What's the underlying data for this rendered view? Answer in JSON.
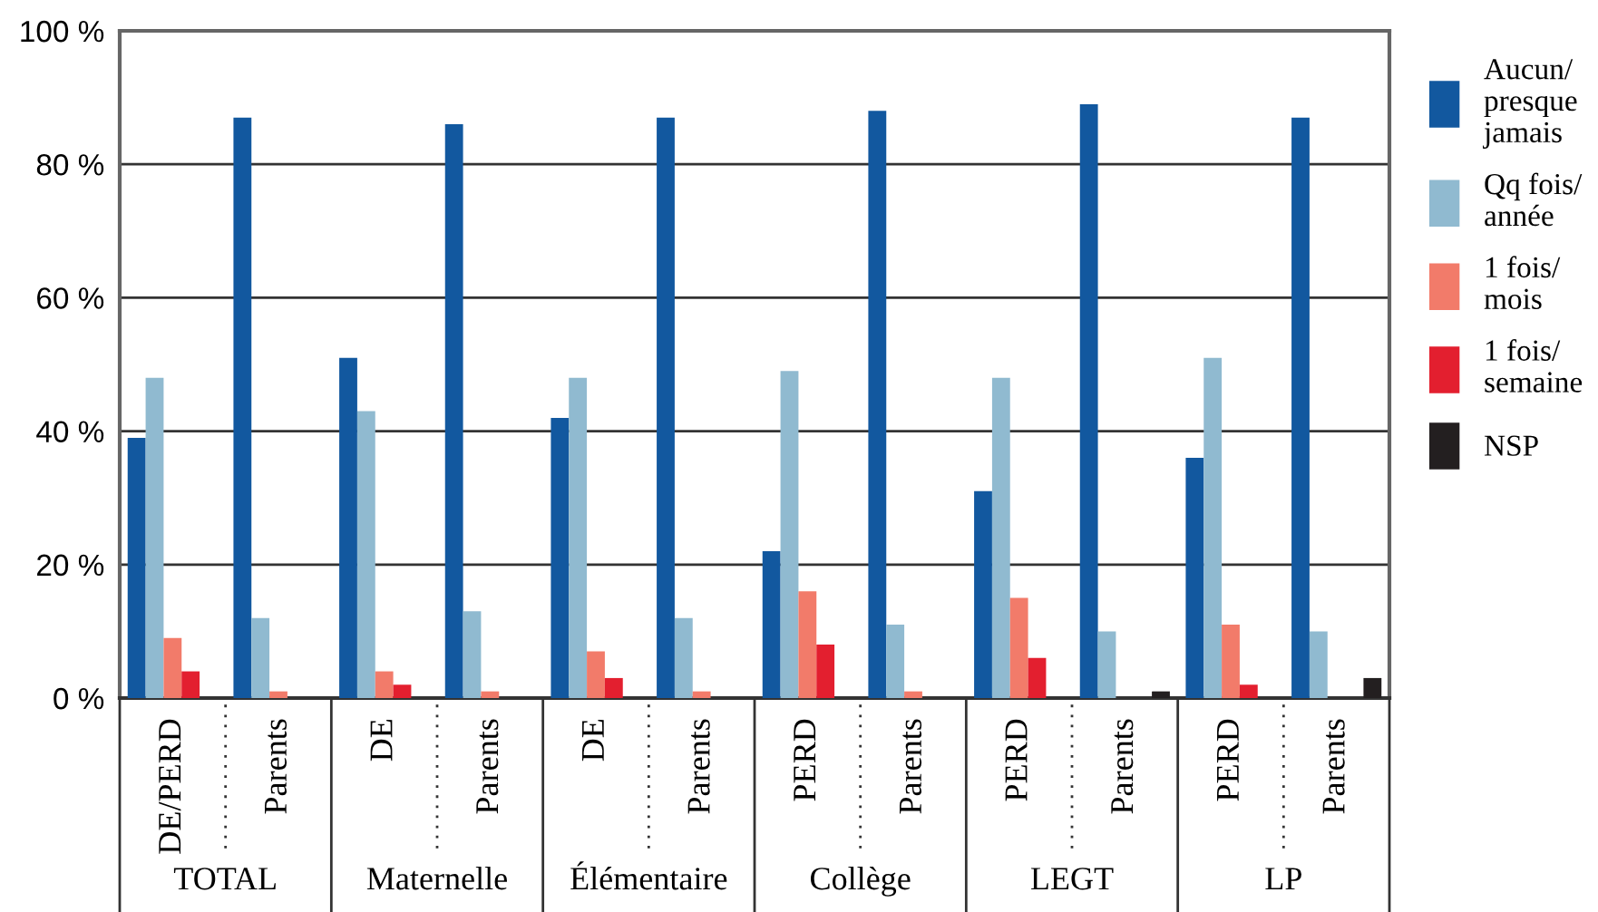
{
  "chart_data": {
    "type": "bar",
    "categories": [
      "DE/PERD",
      "Parents",
      "DE",
      "Parents",
      "DE",
      "Parents",
      "PERD",
      "Parents",
      "PERD",
      "Parents",
      "PERD",
      "Parents"
    ],
    "series": [
      {
        "name": "Aucun/\npresque\njamais",
        "color": "#12589f",
        "values": [
          39,
          87,
          51,
          86,
          42,
          87,
          22,
          88,
          31,
          89,
          36,
          87
        ]
      },
      {
        "name": "Qq fois/\nannée",
        "color": "#90bad0",
        "values": [
          48,
          12,
          43,
          13,
          48,
          12,
          49,
          11,
          48,
          10,
          51,
          10
        ]
      },
      {
        "name": "1 fois/\nmois",
        "color": "#f27b6a",
        "values": [
          9,
          1,
          4,
          1,
          7,
          1,
          16,
          1,
          15,
          0,
          11,
          0
        ]
      },
      {
        "name": "1 fois/\nsemaine",
        "color": "#e31f2f",
        "values": [
          4,
          0,
          2,
          0,
          3,
          0,
          8,
          0,
          6,
          0,
          2,
          0
        ]
      },
      {
        "name": "NSP",
        "color": "#231f20",
        "values": [
          0,
          0,
          0,
          0,
          0,
          0,
          0,
          0,
          0,
          1,
          0,
          3
        ]
      }
    ],
    "annotations": [
      "TOTAL",
      "Maternelle",
      "Élémentaire",
      "Collège",
      "LEGT",
      "LP"
    ],
    "ylim": [
      0,
      100
    ],
    "yticks": [
      {
        "value": 0,
        "label": "0 %"
      },
      {
        "value": 20,
        "label": "20 %"
      },
      {
        "value": 40,
        "label": "40 %"
      },
      {
        "value": 60,
        "label": "60 %"
      },
      {
        "value": 80,
        "label": "80 %"
      },
      {
        "value": 100,
        "label": "100 %"
      }
    ],
    "grid": "y",
    "legend": "right"
  }
}
